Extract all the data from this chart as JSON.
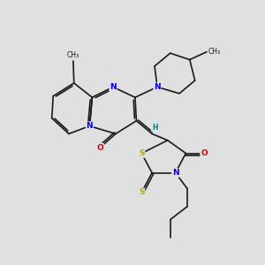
{
  "bg_color": "#e0e0e0",
  "bond_color": "#1a1a1a",
  "atom_colors": {
    "N": "#0000ee",
    "O": "#dd0000",
    "S": "#bbaa00",
    "H": "#008080",
    "C": "#1a1a1a"
  },
  "font_size": 6.5,
  "lw": 1.2
}
